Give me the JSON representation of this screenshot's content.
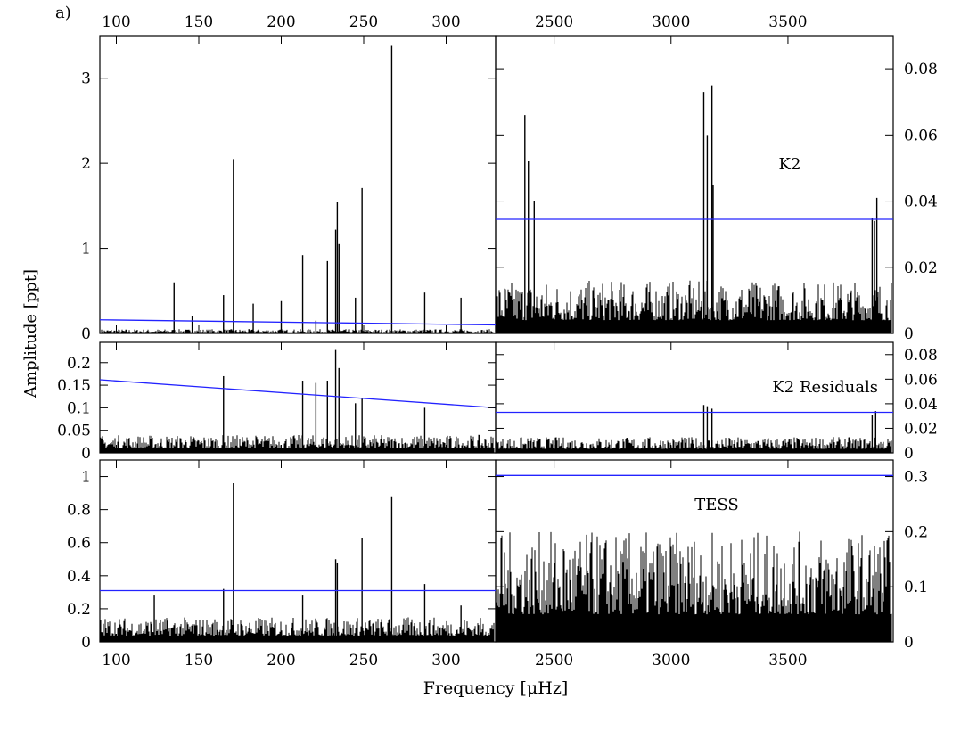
{
  "figure": {
    "panel_label": "a)",
    "ylabel": "Amplitude [ppt]",
    "xlabel": "Frequency [μHz]"
  },
  "chart_data": [
    {
      "type": "line",
      "row": "K2",
      "side": "left",
      "annotation": "",
      "xlim": [
        90,
        330
      ],
      "ylim": [
        0,
        3.5
      ],
      "xticks": [
        100,
        150,
        200,
        250,
        300
      ],
      "yticks": [
        0,
        1,
        2,
        3
      ],
      "threshold": {
        "x": [
          90,
          330
        ],
        "y": [
          0.16,
          0.1
        ]
      },
      "noise": 0.05,
      "peaks": [
        [
          135,
          0.6
        ],
        [
          146,
          0.2
        ],
        [
          165,
          0.45
        ],
        [
          171,
          2.05
        ],
        [
          183,
          0.35
        ],
        [
          200,
          0.38
        ],
        [
          213,
          0.92
        ],
        [
          221,
          0.15
        ],
        [
          228,
          0.85
        ],
        [
          233,
          1.22
        ],
        [
          234,
          1.54
        ],
        [
          235,
          1.05
        ],
        [
          245,
          0.42
        ],
        [
          249,
          1.71
        ],
        [
          267,
          3.38
        ],
        [
          287,
          0.48
        ],
        [
          309,
          0.42
        ]
      ]
    },
    {
      "type": "line",
      "row": "K2",
      "side": "right",
      "annotation": "K2",
      "xlim": [
        2250,
        3950
      ],
      "ylim": [
        0,
        0.09
      ],
      "xticks": [
        2500,
        3000,
        3500
      ],
      "yticks": [
        0,
        0.02,
        0.04,
        0.06,
        0.08
      ],
      "threshold": {
        "x": [
          2250,
          3950
        ],
        "y": [
          0.0345,
          0.0345
        ]
      },
      "noise": 0.016,
      "peaks": [
        [
          2375,
          0.066
        ],
        [
          2390,
          0.052
        ],
        [
          2415,
          0.04
        ],
        [
          3140,
          0.073
        ],
        [
          3155,
          0.06
        ],
        [
          3175,
          0.075
        ],
        [
          3180,
          0.045
        ],
        [
          3860,
          0.035
        ],
        [
          3870,
          0.034
        ],
        [
          3880,
          0.041
        ]
      ]
    },
    {
      "type": "line",
      "row": "K2 Residuals",
      "side": "left",
      "annotation": "",
      "xlim": [
        90,
        330
      ],
      "ylim": [
        0,
        0.245
      ],
      "xticks": [
        100,
        150,
        200,
        250,
        300
      ],
      "yticks": [
        0,
        0.05,
        0.1,
        0.15,
        0.2
      ],
      "threshold": {
        "x": [
          90,
          330
        ],
        "y": [
          0.162,
          0.1
        ]
      },
      "noise": 0.04,
      "peaks": [
        [
          165,
          0.17
        ],
        [
          213,
          0.16
        ],
        [
          221,
          0.155
        ],
        [
          228,
          0.16
        ],
        [
          233,
          0.228
        ],
        [
          235,
          0.188
        ],
        [
          245,
          0.11
        ],
        [
          249,
          0.12
        ],
        [
          287,
          0.1
        ]
      ]
    },
    {
      "type": "line",
      "row": "K2 Residuals",
      "side": "right",
      "annotation": "K2 Residuals",
      "xlim": [
        2250,
        3950
      ],
      "ylim": [
        0,
        0.09
      ],
      "xticks": [
        2500,
        3000,
        3500
      ],
      "yticks": [
        0,
        0.02,
        0.04,
        0.06,
        0.08
      ],
      "threshold": {
        "x": [
          2250,
          3950
        ],
        "y": [
          0.033,
          0.033
        ]
      },
      "noise": 0.013,
      "peaks": [
        [
          3140,
          0.039
        ],
        [
          3155,
          0.038
        ],
        [
          3175,
          0.036
        ],
        [
          3860,
          0.031
        ],
        [
          3875,
          0.034
        ]
      ]
    },
    {
      "type": "line",
      "row": "TESS",
      "side": "left",
      "annotation": "",
      "xlim": [
        90,
        330
      ],
      "ylim": [
        0,
        1.1
      ],
      "xticks": [
        100,
        150,
        200,
        250,
        300
      ],
      "yticks": [
        0,
        0.2,
        0.4,
        0.6,
        0.8,
        1
      ],
      "threshold": {
        "x": [
          90,
          330
        ],
        "y": [
          0.31,
          0.31
        ]
      },
      "noise": 0.15,
      "peaks": [
        [
          123,
          0.28
        ],
        [
          165,
          0.32
        ],
        [
          171,
          0.96
        ],
        [
          213,
          0.28
        ],
        [
          233,
          0.5
        ],
        [
          234,
          0.48
        ],
        [
          249,
          0.63
        ],
        [
          267,
          0.88
        ],
        [
          287,
          0.35
        ],
        [
          309,
          0.22
        ]
      ]
    },
    {
      "type": "line",
      "row": "TESS",
      "side": "right",
      "annotation": "TESS",
      "xlim": [
        2250,
        3950
      ],
      "ylim": [
        0,
        0.33
      ],
      "xticks": [
        2500,
        3000,
        3500
      ],
      "yticks": [
        0,
        0.1,
        0.2,
        0.3
      ],
      "threshold": {
        "x": [
          2250,
          3950
        ],
        "y": [
          0.302,
          0.302
        ]
      },
      "noise": 0.2,
      "peaks": []
    }
  ]
}
